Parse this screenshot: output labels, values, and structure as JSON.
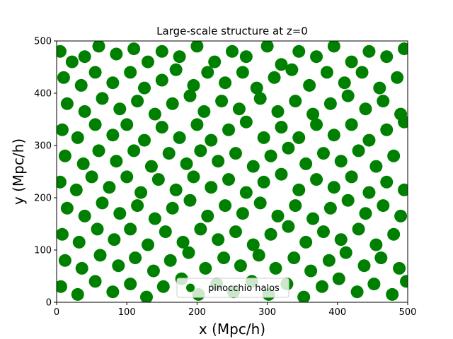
{
  "chart_data": {
    "type": "scatter",
    "title": "Large-scale structure at z=0",
    "xlabel": "x (Mpc/h)",
    "ylabel": "y (Mpc/h)",
    "xlim": [
      0,
      500
    ],
    "ylim": [
      0,
      500
    ],
    "xticks": [
      "0",
      "100",
      "200",
      "300",
      "400",
      "500"
    ],
    "yticks": [
      "0",
      "100",
      "200",
      "300",
      "400",
      "500"
    ],
    "grid": false,
    "legend_position": "lower center",
    "series": [
      {
        "name": "pinocchio halos",
        "color": "#008000",
        "marker": "circle",
        "point_count": "dense",
        "points": [
          [
            5,
            480
          ],
          [
            22,
            460
          ],
          [
            40,
            470
          ],
          [
            60,
            490
          ],
          [
            85,
            475
          ],
          [
            110,
            485
          ],
          [
            130,
            460
          ],
          [
            150,
            480
          ],
          [
            175,
            470
          ],
          [
            200,
            490
          ],
          [
            225,
            460
          ],
          [
            250,
            480
          ],
          [
            270,
            470
          ],
          [
            300,
            490
          ],
          [
            320,
            455
          ],
          [
            345,
            480
          ],
          [
            370,
            470
          ],
          [
            395,
            490
          ],
          [
            420,
            460
          ],
          [
            445,
            480
          ],
          [
            470,
            470
          ],
          [
            495,
            485
          ],
          [
            10,
            430
          ],
          [
            35,
            415
          ],
          [
            55,
            440
          ],
          [
            80,
            420
          ],
          [
            105,
            440
          ],
          [
            125,
            410
          ],
          [
            150,
            425
          ],
          [
            170,
            445
          ],
          [
            195,
            415
          ],
          [
            215,
            440
          ],
          [
            240,
            420
          ],
          [
            265,
            440
          ],
          [
            285,
            410
          ],
          [
            310,
            430
          ],
          [
            335,
            445
          ],
          [
            360,
            415
          ],
          [
            385,
            440
          ],
          [
            410,
            420
          ],
          [
            435,
            440
          ],
          [
            460,
            410
          ],
          [
            485,
            430
          ],
          [
            15,
            380
          ],
          [
            40,
            365
          ],
          [
            65,
            390
          ],
          [
            90,
            370
          ],
          [
            115,
            385
          ],
          [
            140,
            360
          ],
          [
            165,
            380
          ],
          [
            190,
            395
          ],
          [
            210,
            365
          ],
          [
            235,
            385
          ],
          [
            260,
            370
          ],
          [
            290,
            390
          ],
          [
            315,
            365
          ],
          [
            340,
            385
          ],
          [
            365,
            360
          ],
          [
            390,
            380
          ],
          [
            415,
            395
          ],
          [
            440,
            370
          ],
          [
            465,
            385
          ],
          [
            490,
            360
          ],
          [
            8,
            330
          ],
          [
            30,
            315
          ],
          [
            55,
            340
          ],
          [
            80,
            320
          ],
          [
            100,
            340
          ],
          [
            125,
            310
          ],
          [
            150,
            335
          ],
          [
            175,
            315
          ],
          [
            200,
            340
          ],
          [
            220,
            310
          ],
          [
            245,
            330
          ],
          [
            270,
            345
          ],
          [
            295,
            315
          ],
          [
            320,
            335
          ],
          [
            345,
            315
          ],
          [
            370,
            340
          ],
          [
            395,
            320
          ],
          [
            420,
            340
          ],
          [
            445,
            310
          ],
          [
            470,
            330
          ],
          [
            495,
            345
          ],
          [
            12,
            280
          ],
          [
            38,
            265
          ],
          [
            60,
            290
          ],
          [
            85,
            270
          ],
          [
            110,
            290
          ],
          [
            135,
            260
          ],
          [
            160,
            285
          ],
          [
            185,
            265
          ],
          [
            205,
            290
          ],
          [
            230,
            270
          ],
          [
            255,
            285
          ],
          [
            280,
            260
          ],
          [
            305,
            280
          ],
          [
            330,
            295
          ],
          [
            355,
            265
          ],
          [
            380,
            285
          ],
          [
            405,
            270
          ],
          [
            430,
            290
          ],
          [
            455,
            260
          ],
          [
            480,
            280
          ],
          [
            5,
            230
          ],
          [
            28,
            215
          ],
          [
            50,
            240
          ],
          [
            75,
            220
          ],
          [
            100,
            240
          ],
          [
            120,
            210
          ],
          [
            145,
            235
          ],
          [
            170,
            215
          ],
          [
            195,
            240
          ],
          [
            220,
            220
          ],
          [
            245,
            235
          ],
          [
            270,
            210
          ],
          [
            295,
            230
          ],
          [
            320,
            245
          ],
          [
            345,
            215
          ],
          [
            370,
            235
          ],
          [
            395,
            220
          ],
          [
            420,
            240
          ],
          [
            445,
            210
          ],
          [
            470,
            230
          ],
          [
            495,
            215
          ],
          [
            15,
            180
          ],
          [
            40,
            165
          ],
          [
            65,
            190
          ],
          [
            90,
            170
          ],
          [
            115,
            185
          ],
          [
            140,
            160
          ],
          [
            165,
            180
          ],
          [
            190,
            195
          ],
          [
            215,
            165
          ],
          [
            240,
            185
          ],
          [
            265,
            170
          ],
          [
            290,
            190
          ],
          [
            315,
            165
          ],
          [
            340,
            185
          ],
          [
            365,
            160
          ],
          [
            390,
            180
          ],
          [
            415,
            195
          ],
          [
            440,
            170
          ],
          [
            465,
            185
          ],
          [
            490,
            165
          ],
          [
            8,
            130
          ],
          [
            32,
            115
          ],
          [
            58,
            140
          ],
          [
            82,
            120
          ],
          [
            105,
            140
          ],
          [
            130,
            110
          ],
          [
            155,
            135
          ],
          [
            180,
            115
          ],
          [
            205,
            140
          ],
          [
            230,
            120
          ],
          [
            255,
            135
          ],
          [
            280,
            110
          ],
          [
            305,
            130
          ],
          [
            330,
            145
          ],
          [
            355,
            115
          ],
          [
            380,
            135
          ],
          [
            405,
            120
          ],
          [
            430,
            140
          ],
          [
            455,
            110
          ],
          [
            480,
            130
          ],
          [
            12,
            80
          ],
          [
            36,
            65
          ],
          [
            62,
            90
          ],
          [
            88,
            70
          ],
          [
            112,
            85
          ],
          [
            138,
            60
          ],
          [
            162,
            80
          ],
          [
            188,
            95
          ],
          [
            212,
            65
          ],
          [
            238,
            85
          ],
          [
            262,
            70
          ],
          [
            288,
            90
          ],
          [
            312,
            65
          ],
          [
            338,
            85
          ],
          [
            362,
            60
          ],
          [
            388,
            80
          ],
          [
            412,
            95
          ],
          [
            438,
            70
          ],
          [
            462,
            85
          ],
          [
            488,
            65
          ],
          [
            6,
            30
          ],
          [
            30,
            15
          ],
          [
            55,
            40
          ],
          [
            80,
            20
          ],
          [
            105,
            35
          ],
          [
            128,
            10
          ],
          [
            152,
            30
          ],
          [
            178,
            45
          ],
          [
            202,
            15
          ],
          [
            228,
            35
          ],
          [
            252,
            20
          ],
          [
            278,
            40
          ],
          [
            302,
            15
          ],
          [
            328,
            35
          ],
          [
            352,
            10
          ],
          [
            378,
            30
          ],
          [
            402,
            45
          ],
          [
            428,
            20
          ],
          [
            452,
            35
          ],
          [
            478,
            15
          ],
          [
            498,
            40
          ]
        ]
      }
    ]
  }
}
